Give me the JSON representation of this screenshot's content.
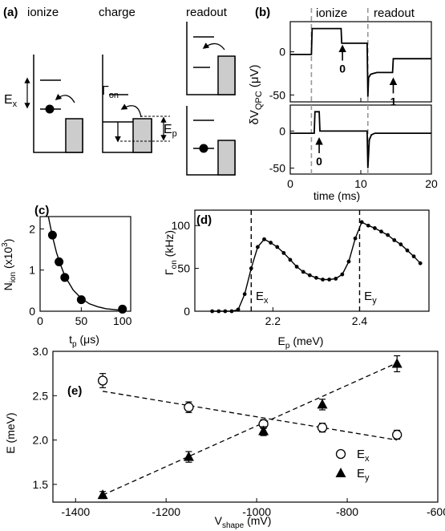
{
  "chart_data": [
    {
      "panel": "(a)",
      "type": "other",
      "stage_labels": [
        "ionize",
        "charge",
        "readout"
      ],
      "symbols": {
        "ex": "E",
        "ex_sub": "x",
        "gamma": "Γ",
        "gamma_sub": "on",
        "ep": "E",
        "ep_sub": "p"
      }
    },
    {
      "panel": "(b)",
      "type": "line",
      "region_labels": [
        "ionize",
        "readout"
      ],
      "xlabel": "time (ms)",
      "ylabel_main": "δV",
      "ylabel_sub": "QPC",
      "ylabel_unit": " (μV)",
      "xlim": [
        0,
        20
      ],
      "xticks": [
        0,
        10,
        20
      ],
      "yticks_top": [
        0,
        -50
      ],
      "yticks_bottom": [
        0,
        -50
      ],
      "ylim": [
        -58,
        35
      ],
      "dashed_x": [
        3,
        11
      ],
      "top_trace": {
        "x": [
          0,
          3,
          3.1,
          7.2,
          7.3,
          10.9,
          11,
          11.1,
          11.4,
          11.8,
          12.3,
          13.2,
          14.5,
          14.6,
          20
        ],
        "y": [
          -3,
          -3,
          27,
          27,
          10,
          10,
          -52,
          -30,
          -26,
          -25,
          -24,
          -24,
          -24,
          -8,
          -8
        ]
      },
      "bottom_trace": {
        "x": [
          0,
          3,
          3.4,
          3.5,
          4.1,
          4.2,
          10.9,
          11,
          11.2,
          11.5,
          12,
          20
        ],
        "y": [
          -3,
          -3,
          -3,
          26,
          26,
          0,
          0,
          -50,
          -12,
          -5,
          -3,
          -3
        ]
      },
      "annotations": [
        {
          "text": "0",
          "x": 7.4,
          "y": -12,
          "trace": "top"
        },
        {
          "text": "1",
          "x": 14.6,
          "y": -50,
          "trace": "top"
        },
        {
          "text": "0",
          "x": 4.1,
          "y": -32,
          "trace": "bottom"
        }
      ]
    },
    {
      "panel": "(c)",
      "type": "scatter",
      "ylabel_main": "N",
      "ylabel_sub": "ion",
      "ylabel_rest": " (x10",
      "ylabel_sup": "3",
      "ylabel_end": ")",
      "xlabel_main": "t",
      "xlabel_sub": "p",
      "xlabel_rest": " (μs)",
      "xlim": [
        0,
        110
      ],
      "ylim": [
        0,
        2.3
      ],
      "xticks": [
        0,
        50,
        100
      ],
      "yticks": [
        0,
        1,
        2
      ],
      "points": {
        "x": [
          15,
          23,
          30,
          50,
          100
        ],
        "y": [
          1.85,
          1.2,
          0.82,
          0.28,
          0.05
        ]
      },
      "fit": {
        "x": [
          10,
          15,
          20,
          25,
          30,
          40,
          50,
          60,
          70,
          80,
          90,
          100
        ],
        "y": [
          2.3,
          1.82,
          1.42,
          1.12,
          0.86,
          0.52,
          0.31,
          0.18,
          0.11,
          0.06,
          0.04,
          0.02
        ]
      }
    },
    {
      "panel": "(d)",
      "type": "line",
      "ylabel_main": "Γ",
      "ylabel_sub": "on",
      "ylabel_rest": " (kHz)",
      "xlabel_main": "E",
      "xlabel_sub": "p",
      "xlabel_rest": " (meV)",
      "xlim": [
        2.02,
        2.56
      ],
      "ylim": [
        0,
        118
      ],
      "xticks": [
        2.2,
        2.4
      ],
      "yticks": [
        0,
        50,
        100
      ],
      "dashed_x": [
        2.15,
        2.4
      ],
      "marker_labels": [
        {
          "main": "E",
          "sub": "x",
          "x": 2.155
        },
        {
          "main": "E",
          "sub": "y",
          "x": 2.405
        }
      ],
      "points": {
        "x": [
          2.06,
          2.075,
          2.09,
          2.105,
          2.12,
          2.135,
          2.15,
          2.165,
          2.18,
          2.195,
          2.21,
          2.225,
          2.24,
          2.255,
          2.27,
          2.285,
          2.3,
          2.315,
          2.33,
          2.345,
          2.36,
          2.375,
          2.39,
          2.405,
          2.42,
          2.435,
          2.45,
          2.465,
          2.48,
          2.495,
          2.51,
          2.525,
          2.54
        ],
        "y": [
          0,
          0,
          0,
          0,
          2,
          20,
          50,
          75,
          84,
          80,
          75,
          68,
          60,
          52,
          46,
          42,
          39,
          37,
          37,
          38,
          43,
          58,
          85,
          104,
          100,
          97,
          93,
          89,
          83,
          78,
          71,
          64,
          56
        ]
      }
    },
    {
      "panel": "(e)",
      "type": "scatter",
      "ylabel": "E (meV)",
      "xlabel_main": "V",
      "xlabel_sub": "shape",
      "xlabel_rest": " (mV)",
      "xlim": [
        -1450,
        -600
      ],
      "ylim": [
        1.3,
        3.0
      ],
      "xticks": [
        -1400,
        -1200,
        -1000,
        -800,
        -600
      ],
      "yticks": [
        1.5,
        2.0,
        2.5,
        3.0
      ],
      "ytick_labels": [
        "1.5",
        "2.0",
        "2.5",
        "3.0"
      ],
      "legend": [
        {
          "main": "E",
          "sub": "x",
          "marker": "open-circle"
        },
        {
          "main": "E",
          "sub": "y",
          "marker": "filled-triangle"
        }
      ],
      "legend_position": "lower-right",
      "series": [
        {
          "marker": "open-circle",
          "x": [
            -1340,
            -1150,
            -985,
            -855,
            -690
          ],
          "y": [
            2.67,
            2.37,
            2.18,
            2.14,
            2.06
          ],
          "err": [
            0.08,
            0.06,
            0.05,
            0.05,
            0.05
          ]
        },
        {
          "marker": "filled-triangle",
          "x": [
            -1340,
            -1150,
            -985,
            -855,
            -690
          ],
          "y": [
            1.38,
            1.81,
            2.1,
            2.4,
            2.86
          ],
          "err": [
            0.04,
            0.06,
            0.05,
            0.06,
            0.09
          ]
        }
      ],
      "fits": [
        {
          "x": [
            -1340,
            -690
          ],
          "y": [
            2.55,
            2.0
          ]
        },
        {
          "x": [
            -1340,
            -690
          ],
          "y": [
            1.38,
            2.87
          ]
        }
      ]
    }
  ]
}
